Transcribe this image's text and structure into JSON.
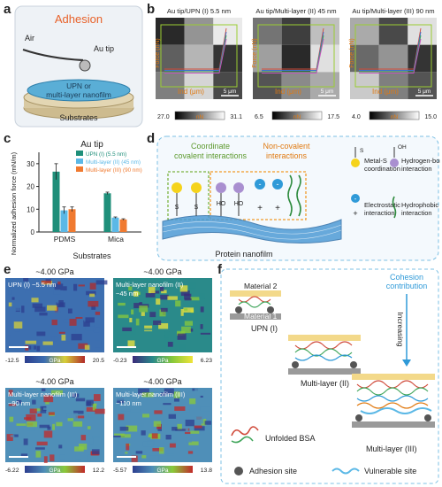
{
  "figure": {
    "panel_labels": [
      "a",
      "b",
      "c",
      "d",
      "e",
      "f"
    ]
  },
  "panel_a": {
    "title": "Adhesion",
    "labels": {
      "air": "Air",
      "tip": "Au tip",
      "film_line1": "UPN or",
      "film_line2": "multi-layer nanofilm",
      "substrates": "Substrates"
    },
    "colors": {
      "title": "#e8622a",
      "film": "#5aaed6",
      "substrate": "#d8c9a2"
    }
  },
  "panel_b": {
    "maps": [
      {
        "title": "Au tip/UPN (I)  5.5 nm",
        "scale_min": "27.0",
        "scale_max": "31.1",
        "unit": "nN",
        "scalebar": "5 μm",
        "curve_ylabel": "Force (nN)",
        "curve_xlabel": "Ind (μm)"
      },
      {
        "title": "Au tip/Multi-layer (II) 45 nm",
        "scale_min": "6.5",
        "scale_max": "17.5",
        "unit": "nN",
        "scalebar": "5 μm",
        "curve_ylabel": "Force (nN)",
        "curve_xlabel": "Ind (μm)"
      },
      {
        "title": "Au tip/Multi-layer  (III) 90 nm",
        "scale_min": "4.0",
        "scale_max": "15.0",
        "unit": "nN",
        "scalebar": "5 μm",
        "curve_ylabel": "Force (nN)",
        "curve_xlabel": "Ind (μm)"
      }
    ],
    "cell_levels": [
      [
        0.05,
        0.55,
        0.95,
        0.3,
        0.7,
        0.1,
        0.45,
        0.85,
        0.2
      ],
      [
        0.4,
        0.15,
        0.75,
        0.6,
        0.05,
        0.9,
        0.25,
        0.5,
        0.65
      ],
      [
        0.65,
        0.2,
        0.9,
        0.35,
        0.55,
        0.1,
        0.8,
        0.45,
        0.25
      ]
    ]
  },
  "chart_data": {
    "type": "bar",
    "title": "Au tip",
    "xlabel": "Substrates",
    "ylabel": "Normalized adhesion force (mN/m)",
    "ylim": [
      0,
      35
    ],
    "yticks": [
      0,
      10,
      20,
      30
    ],
    "categories": [
      "PDMS",
      "Mica"
    ],
    "series": [
      {
        "name": "UPN (I) (5.5 nm)",
        "values": [
          26.5,
          17.0
        ],
        "errors": [
          3.5,
          0.5
        ],
        "color": "#1f8f7a"
      },
      {
        "name": "Multi-layer (II) (45 nm)",
        "values": [
          9.5,
          6.3
        ],
        "errors": [
          1.5,
          0.3
        ],
        "color": "#5bb8e6"
      },
      {
        "name": "Multi-layer (III) (90 nm)",
        "values": [
          10.0,
          5.5
        ],
        "errors": [
          1.0,
          0.3
        ],
        "color": "#f07a30"
      }
    ],
    "legend_position": "top-right"
  },
  "panel_d": {
    "coordinate_line1": "Coordinate",
    "coordinate_line2": "covalent interactions",
    "noncovalent_line1": "Non-covalent",
    "noncovalent_line2": "interactions",
    "nanofilm": "Protein nanofilm",
    "legend": {
      "metal_s_line1": "Metal-S",
      "metal_s_line2": "coordination",
      "hbond_line1": "Hydrogen-bonding",
      "hbond_line2": "interaction",
      "electro_line1": "Electrostatic",
      "electro_line2": "interaction",
      "hydro_line1": "Hydrophobic",
      "hydro_line2": "interaction"
    },
    "glyphs": {
      "s": "S",
      "ho": "HO",
      "oh": "OH",
      "minus": "-",
      "plus": "+"
    },
    "colors": {
      "coordinate": "#7cb342",
      "noncovalent": "#f09a2a",
      "metal": "#f5d31b",
      "hbond": "#a98fd0",
      "electro": "#2f9ad8",
      "hydro": "#2e8b3e"
    }
  },
  "panel_e": {
    "maps": [
      {
        "title": "~4.00 GPa",
        "label_line1": "UPN (I)  ~5.5 nm",
        "label_line2": "",
        "min": "-12.5",
        "max": "20.5",
        "unit": "GPa"
      },
      {
        "title": "~4.00 GPa",
        "label_line1": "Multi-layer nanofilm (II)",
        "label_line2": "~45 nm",
        "min": "-0.23",
        "max": "6.23",
        "unit": "GPa"
      },
      {
        "title": "~4.00 GPa",
        "label_line1": "Multi-layer nanofilm (III)",
        "label_line2": "~90 nm",
        "min": "-6.22",
        "max": "12.2",
        "unit": "GPa"
      },
      {
        "title": "~4.00 GPa",
        "label_line1": "Multi-layer nanofilm (III)",
        "label_line2": "~110 nm",
        "min": "-5.57",
        "max": "13.8",
        "unit": "GPa"
      }
    ]
  },
  "panel_f": {
    "material2": "Material 2",
    "material1": "Material 1",
    "upn": "UPN (I)",
    "multi2": "Multi-layer  (II)",
    "multi3": "Multi-layer  (III)",
    "cohesion_line1": "Cohesion",
    "cohesion_line2": "contribution",
    "increasing": "Increasing",
    "unfolded": "Unfolded BSA",
    "adhesion_site": "Adhesion site",
    "vulnerable_site": "Vulnerable site",
    "colors": {
      "cohesion": "#2f9ad8",
      "top_plate": "#f3d98a",
      "bottom_plate": "#9a9a9a"
    }
  }
}
